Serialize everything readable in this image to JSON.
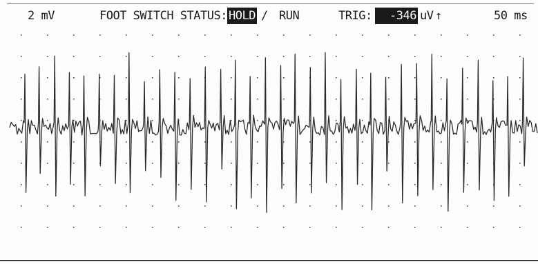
{
  "header": {
    "amplitude": "2 mV",
    "foot_switch_label": "FOOT SWITCH STATUS:",
    "hold_label": "HOLD",
    "separator": "/",
    "run_label": "RUN",
    "trig_label": "TRIG:",
    "trig_value": "-346",
    "trig_unit": "uV",
    "trig_arrow": "↑",
    "timebase": "50 ms"
  },
  "colors": {
    "trace": "#2a2a2a",
    "grid_dot": "#444444",
    "inverse_bg": "#1a1a1a"
  },
  "mode_active": "HOLD"
}
